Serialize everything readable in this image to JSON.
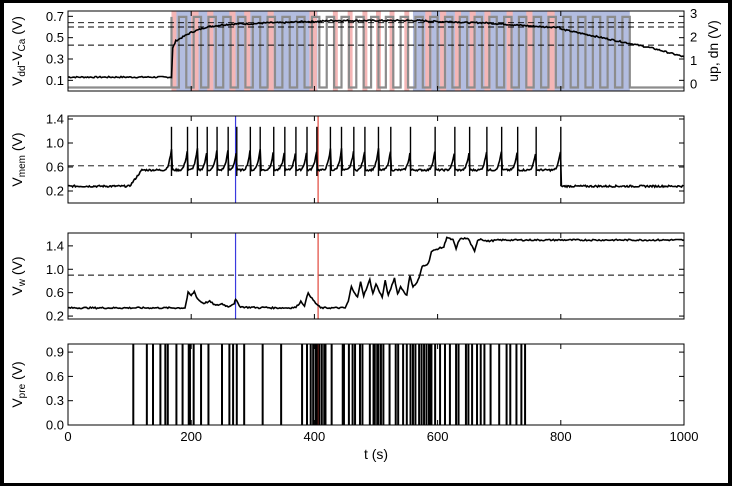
{
  "colors": {
    "trace": "#000000",
    "gray_trace": "#8c8c8c",
    "up_band": "#f4b6b6",
    "dn_band": "#b3bde0",
    "right_axis": "#0000cc",
    "marker_blue": "#3a3adf",
    "marker_red": "#e0453a"
  },
  "chart_data": [
    {
      "type": "line",
      "ylabel_parts": [
        "V",
        "dd",
        "-V",
        "Ca",
        " (V)"
      ],
      "ylim": [
        0,
        0.75
      ],
      "yticks": [
        "0.1",
        "0.3",
        "0.5",
        "0.7"
      ],
      "ytick_values": [
        0.1,
        0.3,
        0.5,
        0.7
      ],
      "xlim": [
        0,
        1000
      ],
      "dashed_lines": [
        0.43,
        0.6,
        0.64
      ],
      "right_axis": {
        "ylabel": "up, dn (V)",
        "ylim": [
          -0.3,
          3.1
        ],
        "yticks": [
          "0",
          "1",
          "2",
          "3"
        ],
        "ytick_values": [
          0,
          1,
          2,
          3
        ]
      },
      "dn_bands": [
        [
          168,
          405
        ],
        [
          560,
          912
        ]
      ],
      "up_bands": [
        [
          168,
          176
        ],
        [
          200,
          212
        ],
        [
          226,
          236
        ],
        [
          262,
          272
        ],
        [
          286,
          296
        ],
        [
          324,
          334
        ],
        [
          392,
          404
        ],
        [
          430,
          438
        ],
        [
          454,
          462
        ],
        [
          478,
          486
        ],
        [
          500,
          508
        ],
        [
          522,
          530
        ],
        [
          546,
          554
        ],
        [
          580,
          590
        ],
        [
          604,
          614
        ],
        [
          628,
          638
        ],
        [
          652,
          662
        ],
        [
          676,
          686
        ],
        [
          712,
          722
        ],
        [
          744,
          754
        ],
        [
          778,
          790
        ]
      ],
      "series": [
        {
          "style": "solid",
          "x": [
            0,
            100,
            168,
            170,
            175,
            200,
            225,
            250,
            275,
            300,
            325,
            350,
            375,
            400,
            425,
            450,
            475,
            500,
            525,
            550,
            575,
            600,
            625,
            650,
            675,
            700,
            725,
            750,
            775,
            798,
            800,
            825,
            850,
            875,
            900,
            925,
            950,
            975,
            1000
          ],
          "y": [
            0.13,
            0.13,
            0.13,
            0.4,
            0.47,
            0.55,
            0.6,
            0.62,
            0.63,
            0.63,
            0.64,
            0.64,
            0.65,
            0.65,
            0.66,
            0.66,
            0.66,
            0.66,
            0.66,
            0.66,
            0.66,
            0.65,
            0.65,
            0.64,
            0.64,
            0.63,
            0.62,
            0.61,
            0.6,
            0.6,
            0.58,
            0.55,
            0.52,
            0.49,
            0.46,
            0.43,
            0.4,
            0.36,
            0.32
          ]
        }
      ]
    },
    {
      "type": "line",
      "ylabel_parts": [
        "V",
        "mem",
        " (V)"
      ],
      "ylim": [
        0,
        1.45
      ],
      "yticks": [
        "0.2",
        "0.6",
        "1.0",
        "1.4"
      ],
      "ytick_values": [
        0.2,
        0.6,
        1.0,
        1.4
      ],
      "xlim": [
        0,
        1000
      ],
      "dashed_lines": [
        0.62
      ],
      "markers": [
        {
          "x": 272,
          "color": "marker_blue"
        },
        {
          "x": 406,
          "color": "marker_red"
        }
      ],
      "baseline": 0.28,
      "rest_level": 0.55,
      "active_range": [
        106,
        800
      ],
      "spikes": [
        168,
        194,
        210,
        226,
        242,
        260,
        274,
        296,
        312,
        334,
        352,
        370,
        388,
        404,
        426,
        444,
        464,
        482,
        504,
        524,
        556,
        596,
        628,
        652,
        680,
        704,
        730,
        760,
        800
      ]
    },
    {
      "type": "line",
      "ylabel_parts": [
        "V",
        "w",
        " (V)"
      ],
      "ylim": [
        0.15,
        1.62
      ],
      "yticks": [
        "0.2",
        "0.6",
        "1.0",
        "1.4"
      ],
      "ytick_values": [
        0.2,
        0.6,
        1.0,
        1.4
      ],
      "xlim": [
        0,
        1000
      ],
      "dashed_lines": [
        0.9
      ],
      "markers": [
        {
          "x": 272,
          "color": "marker_blue"
        },
        {
          "x": 406,
          "color": "marker_red"
        }
      ],
      "series": [
        {
          "style": "solid",
          "x": [
            0,
            190,
            195,
            200,
            205,
            210,
            215,
            220,
            230,
            240,
            250,
            260,
            270,
            272,
            280,
            290,
            300,
            310,
            320,
            330,
            340,
            350,
            360,
            370,
            378,
            384,
            390,
            396,
            402,
            410,
            420,
            430,
            440,
            450,
            455,
            460,
            470,
            475,
            480,
            490,
            495,
            500,
            510,
            515,
            520,
            530,
            535,
            540,
            550,
            555,
            560,
            565,
            570,
            575,
            585,
            590,
            600,
            610,
            615,
            620,
            625,
            630,
            635,
            640,
            650,
            660,
            665,
            670,
            680,
            700,
            750,
            800,
            850,
            900,
            950,
            1000
          ],
          "y": [
            0.34,
            0.34,
            0.6,
            0.55,
            0.62,
            0.5,
            0.45,
            0.42,
            0.45,
            0.38,
            0.41,
            0.36,
            0.42,
            0.48,
            0.36,
            0.35,
            0.35,
            0.34,
            0.35,
            0.34,
            0.34,
            0.34,
            0.34,
            0.35,
            0.45,
            0.38,
            0.6,
            0.5,
            0.42,
            0.34,
            0.34,
            0.34,
            0.34,
            0.34,
            0.45,
            0.7,
            0.52,
            0.78,
            0.55,
            0.82,
            0.58,
            0.75,
            0.52,
            0.8,
            0.55,
            0.85,
            0.58,
            0.7,
            0.55,
            0.9,
            0.7,
            0.75,
            0.85,
            1.05,
            1.1,
            1.3,
            1.35,
            1.38,
            1.55,
            1.52,
            1.5,
            1.35,
            1.5,
            1.53,
            1.52,
            1.3,
            1.5,
            1.52,
            1.48,
            1.5,
            1.5,
            1.5,
            1.5,
            1.5,
            1.5,
            1.5
          ]
        }
      ]
    },
    {
      "type": "raster",
      "ylabel_parts": [
        "V",
        "pre",
        " (V)"
      ],
      "ylim": [
        0,
        1.0
      ],
      "yticks": [
        "0.0",
        "0.3",
        "0.6",
        "0.9"
      ],
      "ytick_values": [
        0.0,
        0.3,
        0.6,
        0.9
      ],
      "xlim": [
        0,
        1000
      ],
      "xlabel": "t (s)",
      "xticks": [
        "0",
        "200",
        "400",
        "600",
        "800",
        "1000"
      ],
      "xtick_values": [
        0,
        200,
        400,
        600,
        800,
        1000
      ],
      "markers": [
        {
          "x": 406,
          "color": "marker_red"
        }
      ],
      "pulses": [
        106,
        128,
        138,
        150,
        158,
        162,
        176,
        186,
        196,
        198,
        204,
        216,
        228,
        250,
        262,
        268,
        274,
        286,
        316,
        346,
        380,
        388,
        394,
        398,
        402,
        404,
        408,
        412,
        416,
        418,
        428,
        446,
        448,
        456,
        462,
        466,
        474,
        478,
        490,
        496,
        498,
        502,
        504,
        508,
        512,
        522,
        532,
        536,
        544,
        550,
        556,
        560,
        564,
        570,
        574,
        578,
        582,
        586,
        588,
        590,
        596,
        604,
        612,
        620,
        630,
        634,
        646,
        650,
        656,
        664,
        670,
        676,
        686,
        700,
        712,
        718,
        728,
        736,
        742
      ]
    }
  ]
}
